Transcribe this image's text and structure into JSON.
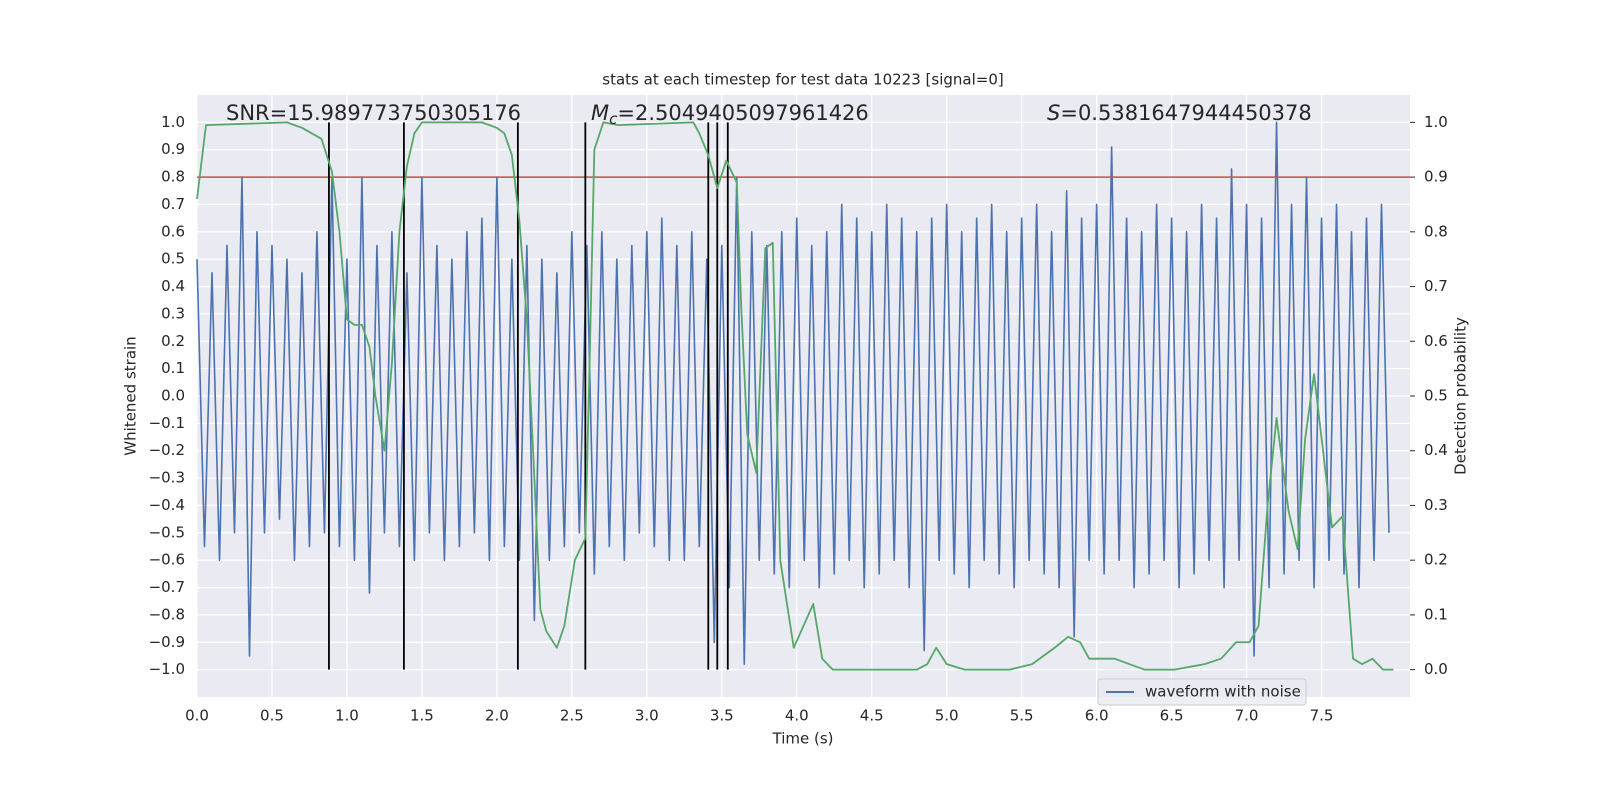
{
  "chart_data": {
    "type": "line",
    "title": "stats at each timestep for test data 10223 [signal=0]",
    "xlabel": "Time (s)",
    "ylabel": "Whitened strain",
    "y2label": "Detection probability",
    "xlim": [
      0,
      8.09
    ],
    "ylim": [
      -1.1,
      1.1
    ],
    "y2lim": [
      -0.05,
      1.05
    ],
    "xticks": [
      {
        "value": 0,
        "label": "0.0"
      },
      0.5,
      {
        "value": 1,
        "label": "1.0"
      },
      1.5,
      {
        "value": 2,
        "label": "2.0"
      },
      2.5,
      {
        "value": 3,
        "label": "3.0"
      },
      3.5,
      {
        "value": 4,
        "label": "4.0"
      },
      4.5,
      {
        "value": 5,
        "label": "5.0"
      },
      5.5,
      {
        "value": 6,
        "label": "6.0"
      },
      6.5,
      {
        "value": 7,
        "label": "7.0"
      },
      7.5
    ],
    "yticks": [
      {
        "value": -1,
        "label": "−1.0"
      },
      {
        "value": -0.9,
        "label": "−0.9"
      },
      {
        "value": -0.8,
        "label": "−0.8"
      },
      {
        "value": -0.7,
        "label": "−0.7"
      },
      {
        "value": -0.6,
        "label": "−0.6"
      },
      {
        "value": -0.5,
        "label": "−0.5"
      },
      {
        "value": -0.4,
        "label": "−0.4"
      },
      {
        "value": -0.3,
        "label": "−0.3"
      },
      {
        "value": -0.2,
        "label": "−0.2"
      },
      {
        "value": -0.1,
        "label": "−0.1"
      },
      {
        "value": 0,
        "label": "0.0"
      },
      0.1,
      0.2,
      0.3,
      0.4,
      0.5,
      0.6,
      0.7,
      0.8,
      0.9,
      {
        "value": 1,
        "label": "1.0"
      }
    ],
    "y2ticks": [
      {
        "value": 0,
        "label": "0.0"
      },
      0.1,
      0.2,
      0.3,
      0.4,
      0.5,
      0.6,
      0.7,
      0.8,
      0.9,
      {
        "value": 1,
        "label": "1.0"
      }
    ],
    "grid": true,
    "legend": "lower right",
    "annotations": [
      {
        "text": "SNR=15.989773750305176"
      },
      {
        "symbol": "M",
        "subscript": "c",
        "text": "=2.5049405097961426"
      },
      {
        "symbol": "S",
        "text": "=0.5381647944450378"
      }
    ],
    "hline": {
      "y": 0.8,
      "color": "#c44e52"
    },
    "vlines": {
      "x": [
        0.88,
        1.38,
        2.14,
        2.59,
        3.41,
        3.47,
        3.54
      ],
      "ymin": -1,
      "ymax": 1,
      "color": "#000000"
    },
    "series": [
      {
        "name": "waveform with noise",
        "color": "#4c72b0",
        "x": [
          0,
          0.05,
          0.1,
          0.15,
          0.2,
          0.25,
          0.3,
          0.35,
          0.4,
          0.45,
          0.5,
          0.55,
          0.6,
          0.65,
          0.7,
          0.75,
          0.8,
          0.85,
          0.9,
          0.95,
          1.0,
          1.05,
          1.1,
          1.15,
          1.2,
          1.25,
          1.3,
          1.35,
          1.4,
          1.45,
          1.5,
          1.55,
          1.6,
          1.65,
          1.7,
          1.75,
          1.8,
          1.85,
          1.9,
          1.95,
          2.0,
          2.05,
          2.1,
          2.15,
          2.2,
          2.25,
          2.3,
          2.35,
          2.4,
          2.45,
          2.5,
          2.55,
          2.6,
          2.65,
          2.7,
          2.75,
          2.8,
          2.85,
          2.9,
          2.95,
          3.0,
          3.05,
          3.1,
          3.15,
          3.2,
          3.25,
          3.3,
          3.35,
          3.4,
          3.45,
          3.5,
          3.55,
          3.6,
          3.65,
          3.7,
          3.75,
          3.8,
          3.85,
          3.9,
          3.95,
          4.0,
          4.05,
          4.1,
          4.15,
          4.2,
          4.25,
          4.3,
          4.35,
          4.4,
          4.45,
          4.5,
          4.55,
          4.6,
          4.65,
          4.7,
          4.75,
          4.8,
          4.85,
          4.9,
          4.95,
          5.0,
          5.05,
          5.1,
          5.15,
          5.2,
          5.25,
          5.3,
          5.35,
          5.4,
          5.45,
          5.5,
          5.55,
          5.6,
          5.65,
          5.7,
          5.75,
          5.8,
          5.85,
          5.9,
          5.95,
          6.0,
          6.05,
          6.1,
          6.15,
          6.2,
          6.25,
          6.3,
          6.35,
          6.4,
          6.45,
          6.5,
          6.55,
          6.6,
          6.65,
          6.7,
          6.75,
          6.8,
          6.85,
          6.9,
          6.95,
          7.0,
          7.05,
          7.1,
          7.15,
          7.2,
          7.25,
          7.3,
          7.35,
          7.4,
          7.45,
          7.5,
          7.55,
          7.6,
          7.65,
          7.7,
          7.75,
          7.8,
          7.85,
          7.9,
          7.95
        ],
        "values": [
          0.5,
          -0.55,
          0.45,
          -0.6,
          0.55,
          -0.5,
          0.8,
          -0.95,
          0.6,
          -0.5,
          0.55,
          -0.45,
          0.5,
          -0.6,
          0.45,
          -0.55,
          0.6,
          -0.5,
          0.8,
          -0.55,
          0.5,
          -0.6,
          0.8,
          -0.72,
          0.55,
          -0.5,
          0.6,
          -0.55,
          0.45,
          -0.6,
          0.8,
          -0.5,
          0.55,
          -0.6,
          0.5,
          -0.55,
          0.6,
          -0.5,
          0.65,
          -0.6,
          0.8,
          -0.55,
          0.5,
          -0.6,
          0.55,
          -0.82,
          0.5,
          -0.6,
          0.45,
          -0.55,
          0.6,
          -0.5,
          0.55,
          -0.65,
          0.6,
          -0.55,
          0.5,
          -0.6,
          0.55,
          -0.5,
          0.6,
          -0.55,
          0.65,
          -0.6,
          0.55,
          -0.6,
          0.6,
          -0.55,
          0.5,
          -0.9,
          0.55,
          -0.7,
          0.8,
          -0.98,
          0.6,
          -0.6,
          0.55,
          -0.65,
          0.6,
          -0.7,
          0.65,
          -0.6,
          0.55,
          -0.7,
          0.6,
          -0.65,
          0.7,
          -0.6,
          0.65,
          -0.7,
          0.6,
          -0.65,
          0.7,
          -0.6,
          0.65,
          -0.7,
          0.6,
          -0.93,
          0.65,
          -0.6,
          0.7,
          -0.65,
          0.6,
          -0.7,
          0.65,
          -0.6,
          0.7,
          -0.65,
          0.6,
          -0.7,
          0.65,
          -0.6,
          0.7,
          -0.65,
          0.6,
          -0.7,
          0.75,
          -0.88,
          0.65,
          -0.6,
          0.7,
          -0.65,
          0.91,
          -0.6,
          0.65,
          -0.7,
          0.6,
          -0.65,
          0.7,
          -0.6,
          0.65,
          -0.7,
          0.6,
          -0.65,
          0.7,
          -0.6,
          0.65,
          -0.7,
          0.83,
          -0.6,
          0.7,
          -0.95,
          0.65,
          -0.7,
          1.0,
          -0.65,
          0.7,
          -0.6,
          0.8,
          -0.7,
          0.65,
          -0.6,
          0.7,
          -0.65,
          0.6,
          -0.7,
          0.65,
          -0.6,
          0.7,
          -0.5
        ]
      },
      {
        "color": "#55a868",
        "axis": "y2",
        "x": [
          0,
          0.06,
          0.6,
          0.7,
          0.83,
          0.9,
          0.95,
          1.0,
          1.05,
          1.1,
          1.15,
          1.19,
          1.25,
          1.3,
          1.35,
          1.4,
          1.45,
          1.5,
          1.9,
          2.0,
          2.05,
          2.1,
          2.15,
          2.2,
          2.25,
          2.29,
          2.33,
          2.4,
          2.45,
          2.52,
          2.59,
          2.62,
          2.65,
          2.71,
          2.81,
          3.31,
          3.35,
          3.41,
          3.47,
          3.53,
          3.6,
          3.63,
          3.67,
          3.73,
          3.79,
          3.84,
          3.89,
          3.98,
          4.11,
          4.17,
          4.24,
          4.5,
          4.8,
          4.87,
          4.93,
          5.0,
          5.12,
          5.42,
          5.57,
          5.72,
          5.81,
          5.89,
          5.95,
          6.02,
          6.12,
          6.22,
          6.32,
          6.52,
          6.72,
          6.83,
          6.93,
          7.02,
          7.08,
          7.14,
          7.2,
          7.28,
          7.34,
          7.39,
          7.45,
          7.57,
          7.64,
          7.71,
          7.77,
          7.84,
          7.91,
          7.98
        ],
        "values": [
          0.86,
          0.995,
          1.0,
          0.99,
          0.97,
          0.91,
          0.8,
          0.64,
          0.63,
          0.63,
          0.59,
          0.5,
          0.4,
          0.56,
          0.8,
          0.92,
          0.98,
          1.0,
          1.0,
          0.99,
          0.98,
          0.94,
          0.82,
          0.64,
          0.35,
          0.11,
          0.07,
          0.04,
          0.08,
          0.2,
          0.24,
          0.58,
          0.95,
          1.0,
          0.995,
          1.0,
          0.98,
          0.94,
          0.88,
          0.93,
          0.89,
          0.66,
          0.43,
          0.36,
          0.77,
          0.78,
          0.2,
          0.04,
          0.12,
          0.02,
          0.0,
          0.0,
          0.0,
          0.01,
          0.04,
          0.01,
          0.0,
          0.0,
          0.01,
          0.04,
          0.06,
          0.05,
          0.02,
          0.02,
          0.02,
          0.01,
          0.0,
          0.0,
          0.01,
          0.02,
          0.05,
          0.05,
          0.08,
          0.3,
          0.46,
          0.29,
          0.22,
          0.42,
          0.54,
          0.26,
          0.28,
          0.02,
          0.01,
          0.02,
          0.0,
          0.0
        ]
      }
    ]
  }
}
